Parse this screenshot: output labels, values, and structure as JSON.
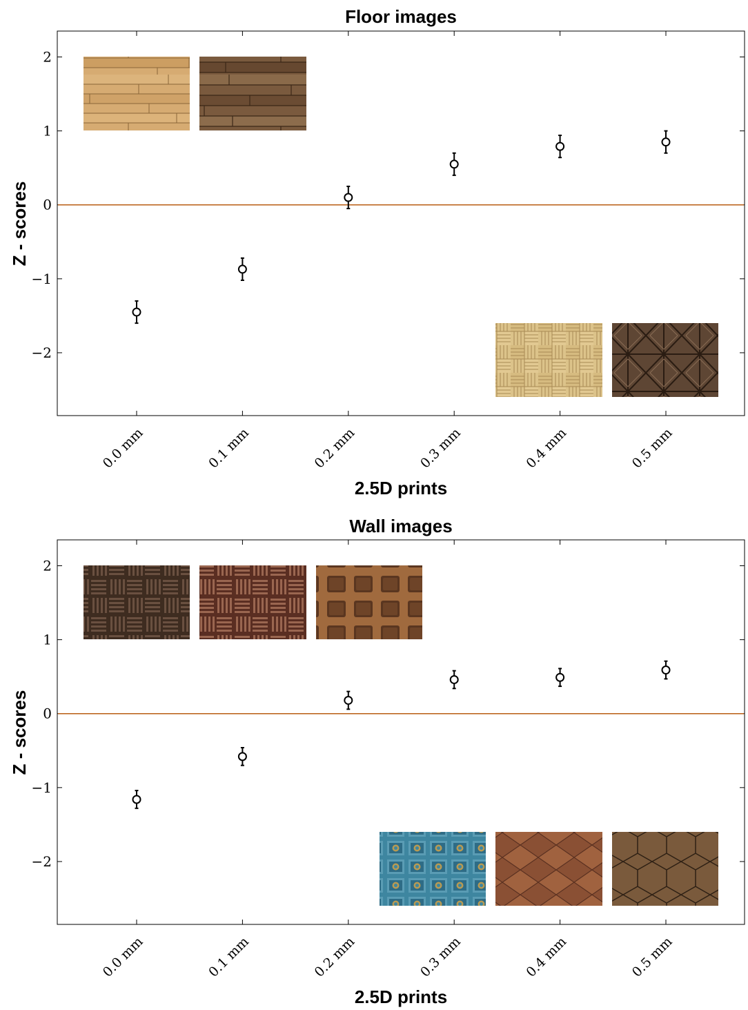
{
  "chart_data": [
    {
      "type": "scatter",
      "title": "Floor images",
      "xlabel": "2.5D prints",
      "ylabel": "Z - scores",
      "categories": [
        "0.0 mm",
        "0.1 mm",
        "0.2 mm",
        "0.3 mm",
        "0.4 mm",
        "0.5 mm"
      ],
      "values": [
        -1.45,
        -0.87,
        0.1,
        0.55,
        0.79,
        0.85
      ],
      "error": [
        0.15,
        0.15,
        0.15,
        0.15,
        0.15,
        0.15
      ],
      "ylim": [
        -2.85,
        2.35
      ],
      "yticks": [
        -2,
        -1,
        0,
        1,
        2
      ],
      "ytick_labels": [
        "−2",
        "−1",
        "0",
        "1",
        "2"
      ],
      "reference_line": 0,
      "reference_color": "#b85c12",
      "grid": false,
      "thumbnails_top": [
        "plank-light",
        "plank-dark"
      ],
      "thumbnails_bottom": [
        "parquet-basket-light",
        "parquet-chevron-dark"
      ]
    },
    {
      "type": "scatter",
      "title": "Wall images",
      "xlabel": "2.5D prints",
      "ylabel": "Z - scores",
      "categories": [
        "0.0 mm",
        "0.1 mm",
        "0.2 mm",
        "0.3 mm",
        "0.4 mm",
        "0.5 mm"
      ],
      "values": [
        -1.16,
        -0.58,
        0.18,
        0.46,
        0.49,
        0.59
      ],
      "error": [
        0.12,
        0.12,
        0.12,
        0.12,
        0.12,
        0.12
      ],
      "ylim": [
        -2.85,
        2.35
      ],
      "yticks": [
        -2,
        -1,
        0,
        1,
        2
      ],
      "ytick_labels": [
        "−2",
        "−1",
        "0",
        "1",
        "2"
      ],
      "reference_line": 0,
      "reference_color": "#b85c12",
      "grid": false,
      "thumbnails_top": [
        "basketweave-dark",
        "basketweave-red",
        "coffered-brown"
      ],
      "thumbnails_bottom": [
        "tile-blue",
        "diamond-brown",
        "hexagon-brown"
      ]
    }
  ]
}
